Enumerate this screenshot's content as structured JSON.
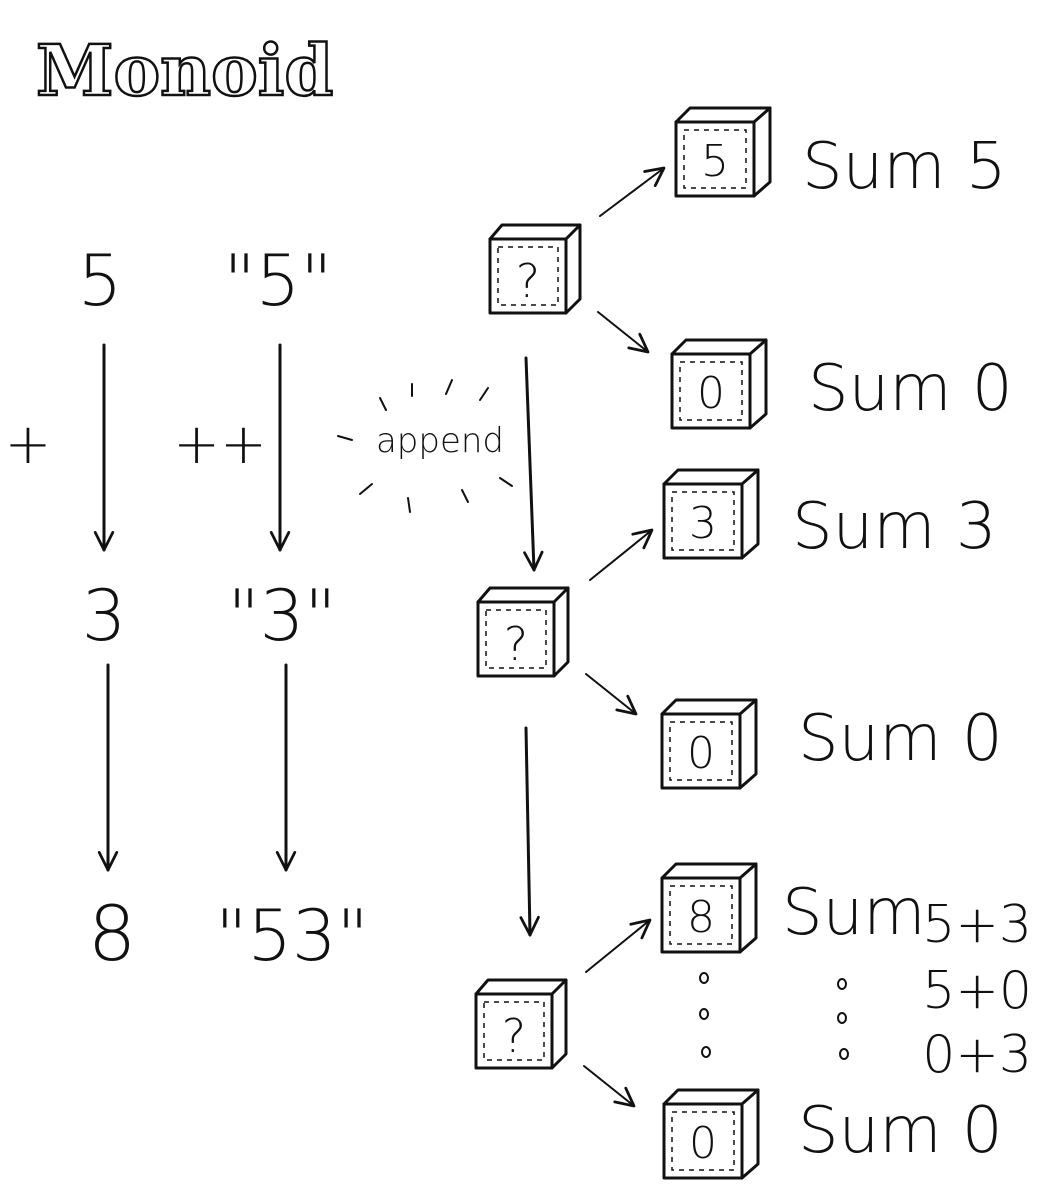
{
  "title": "Monoid",
  "numbers_column": {
    "top": "5",
    "middle": "3",
    "bottom": "8",
    "operator": "+"
  },
  "strings_column": {
    "top": "\"5\"",
    "middle": "\"3\"",
    "bottom": "\"53\"",
    "operator": "++"
  },
  "append_label": "append",
  "stages": [
    {
      "box_label": "?",
      "upper": {
        "box_label": "5",
        "text": "Sum 5"
      },
      "lower": {
        "box_label": "0",
        "text": "Sum 0"
      }
    },
    {
      "box_label": "?",
      "upper": {
        "box_label": "3",
        "text": "Sum 3"
      },
      "lower": {
        "box_label": "0",
        "text": "Sum 0"
      }
    },
    {
      "box_label": "?",
      "upper": {
        "box_label": "8",
        "text": "Sum"
      },
      "lower": {
        "box_label": "0",
        "text": "Sum 0"
      }
    }
  ],
  "sum_expressions": [
    "5+3",
    "5+0",
    "0+3"
  ]
}
